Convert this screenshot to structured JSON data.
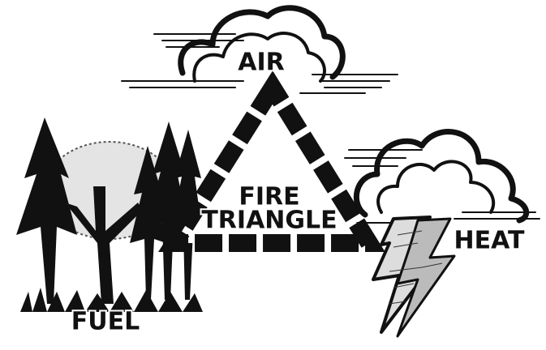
{
  "air": "AIR",
  "fire_triangle": [
    "FIRE",
    "TRIANGLE"
  ],
  "heat": "HEAT",
  "fuel": "FUEL"
}
